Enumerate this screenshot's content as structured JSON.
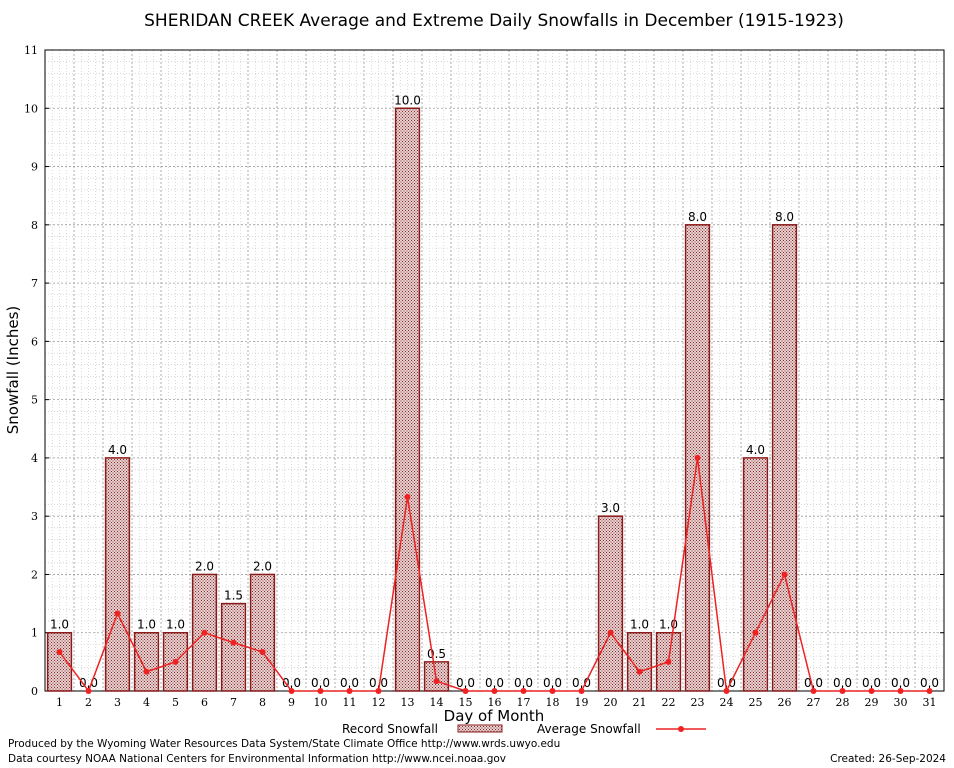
{
  "chart_data": {
    "type": "bar",
    "title": "SHERIDAN CREEK Average and Extreme Daily Snowfalls in December (1915-1923)",
    "xlabel": "Day of Month",
    "ylabel": "Snowfall (Inches)",
    "ylim": [
      0,
      11
    ],
    "yticks": [
      "0",
      "1",
      "2",
      "3",
      "4",
      "5",
      "6",
      "7",
      "8",
      "9",
      "10",
      "11"
    ],
    "grid": true,
    "categories": [
      "1",
      "2",
      "3",
      "4",
      "5",
      "6",
      "7",
      "8",
      "9",
      "10",
      "11",
      "12",
      "13",
      "14",
      "15",
      "16",
      "17",
      "18",
      "19",
      "20",
      "21",
      "22",
      "23",
      "24",
      "25",
      "26",
      "27",
      "28",
      "29",
      "30",
      "31"
    ],
    "series": [
      {
        "name": "Record Snowfall",
        "type": "bar",
        "values": [
          1.0,
          0.0,
          4.0,
          1.0,
          1.0,
          2.0,
          1.5,
          2.0,
          0.0,
          0.0,
          0.0,
          0.0,
          10.0,
          0.5,
          0.0,
          0.0,
          0.0,
          0.0,
          0.0,
          3.0,
          1.0,
          1.0,
          8.0,
          0.0,
          4.0,
          8.0,
          0.0,
          0.0,
          0.0,
          0.0,
          0.0
        ],
        "labels": [
          "1.0",
          "0.0",
          "4.0",
          "1.0",
          "1.0",
          "2.0",
          "1.5",
          "2.0",
          "0.0",
          "0.0",
          "0.0",
          "0.0",
          "10.0",
          "0.5",
          "0.0",
          "0.0",
          "0.0",
          "0.0",
          "0.0",
          "3.0",
          "1.0",
          "1.0",
          "8.0",
          "0.0",
          "4.0",
          "8.0",
          "0.0",
          "0.0",
          "0.0",
          "0.0",
          "0.0"
        ]
      },
      {
        "name": "Average Snowfall",
        "type": "line",
        "values": [
          0.67,
          0.0,
          1.33,
          0.33,
          0.5,
          1.0,
          0.83,
          0.67,
          0.0,
          0.0,
          0.0,
          0.0,
          3.33,
          0.17,
          0.0,
          0.0,
          0.0,
          0.0,
          0.0,
          1.0,
          0.33,
          0.5,
          4.0,
          0.0,
          1.0,
          2.0,
          0.0,
          0.0,
          0.0,
          0.0,
          0.0
        ]
      }
    ],
    "legend": {
      "position": "bottom",
      "items": [
        "Record Snowfall",
        "Average Snowfall"
      ]
    },
    "colors": {
      "bar_fill": "#c8a8a8",
      "bar_stroke": "#8b1a1a",
      "line": "#ee2222",
      "grid": "#9a9a9a"
    }
  },
  "footer": {
    "produced_by": "Produced by the Wyoming Water Resources Data System/State Climate Office http://www.wrds.uwyo.edu",
    "data_courtesy": "Data courtesy NOAA National Centers for Environmental Information http://www.ncei.noaa.gov",
    "created": "Created:  26-Sep-2024"
  }
}
